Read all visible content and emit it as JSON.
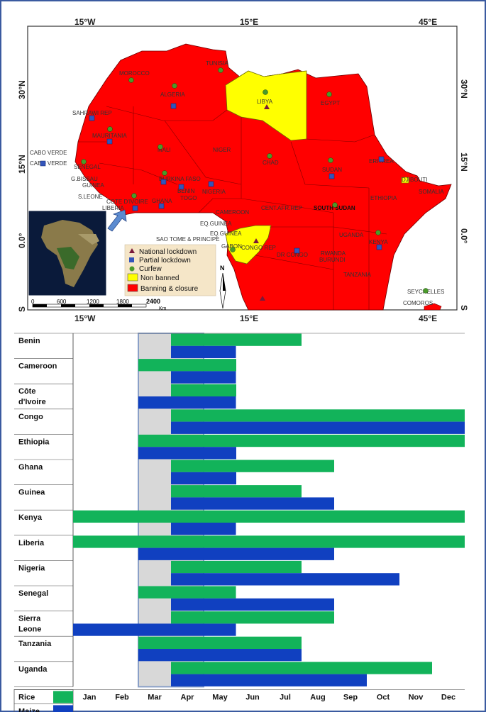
{
  "map": {
    "top_axis": [
      "15°W",
      "15°E",
      "45°E"
    ],
    "bottom_axis": [
      "15°W",
      "15°E",
      "45°E"
    ],
    "left_axis": [
      "30°N",
      "15°N",
      "0.0°",
      "S"
    ],
    "right_axis": [
      "30°N",
      "15°N",
      "0.0°",
      "S"
    ],
    "countries": [
      "MOROCCO",
      "TUNISIA",
      "ALGERIA",
      "LIBYA",
      "EGYPT",
      "SAHRAWI REP",
      "MAURITANIA",
      "MALI",
      "NIGER",
      "CHAD",
      "SUDAN",
      "ERITREA",
      "DJIBOUTI",
      "CABO VERDE",
      "CABO VERDE",
      "SENEGAL",
      "G.BISSAU",
      "GUINEA",
      "S.LEONE",
      "LIBERIA",
      "COTE D'IVOIRE",
      "BURKINA FASO",
      "GHANA",
      "BENIN",
      "TOGO",
      "NIGERIA",
      "CAMEROON",
      "CENT.AFR.REP",
      "SOUTH SUDAN",
      "ETHIOPIA",
      "SOMALIA",
      "EQ.GUINEA",
      "EQ.GUINEA",
      "GABON",
      "SAO TOME & PRINCIPE",
      "CONGO REP",
      "DR CONGO",
      "UGANDA",
      "KENYA",
      "RWANDA",
      "BURUNDI",
      "TANZANIA",
      "SEYCHELLES",
      "COMOROS"
    ],
    "legend": {
      "items": [
        "National lockdown",
        "Partial lockdown",
        "Curfew",
        "Non banned",
        "Banning & closure"
      ],
      "colors": [
        "#7a1a3a",
        "#3355bb",
        "#4a9a2a",
        "#ffff00",
        "#ff0000"
      ]
    },
    "scale": {
      "ticks": [
        "0",
        "600",
        "1200",
        "1800",
        "2400"
      ],
      "unit": "Km"
    },
    "north": "N",
    "colors": {
      "land": "#ff0000",
      "non_banned": "#ffff00",
      "sea": "#ffffff"
    }
  },
  "chart_data": {
    "type": "gantt",
    "months": [
      "Jan",
      "Feb",
      "Mar",
      "Apr",
      "May",
      "Jun",
      "Jul",
      "Aug",
      "Sep",
      "Oct",
      "Nov",
      "Dec"
    ],
    "legend": [
      {
        "name": "Rice",
        "color": "#12b35a"
      },
      {
        "name": "Maize",
        "color": "#1040c0"
      }
    ],
    "highlight_months": [
      "Mar",
      "Apr"
    ],
    "countries": [
      {
        "name": "Benin",
        "rice": [
          3,
          7
        ],
        "maize": [
          3,
          4.99
        ]
      },
      {
        "name": "Cameroon",
        "rice": [
          2,
          5
        ],
        "maize": [
          3,
          4.99
        ]
      },
      {
        "name": "Côte d'Ivoire",
        "rice": [
          3,
          5
        ],
        "maize": [
          2,
          4.99
        ]
      },
      {
        "name": "Congo",
        "rice": [
          3,
          12
        ],
        "maize": [
          3,
          12
        ]
      },
      {
        "name": "Ethiopia",
        "rice": [
          2,
          12
        ],
        "maize": [
          2,
          5
        ]
      },
      {
        "name": "Ghana",
        "rice": [
          3,
          8
        ],
        "maize": [
          3,
          5
        ]
      },
      {
        "name": "Guinea",
        "rice": [
          3,
          7
        ],
        "maize": [
          3,
          8
        ]
      },
      {
        "name": "Kenya",
        "rice": [
          0,
          12
        ],
        "maize": [
          3,
          4.99
        ]
      },
      {
        "name": "Liberia",
        "rice": [
          0,
          12
        ],
        "maize": [
          2,
          8
        ]
      },
      {
        "name": "Nigeria",
        "rice": [
          3,
          7
        ],
        "maize": [
          3,
          10
        ]
      },
      {
        "name": "Senegal",
        "rice": [
          2,
          4.99
        ],
        "maize": [
          3,
          8
        ]
      },
      {
        "name": "Sierra Leone",
        "rice": [
          3,
          8
        ],
        "maize": [
          0,
          4.99
        ]
      },
      {
        "name": "Tanzania",
        "rice": [
          2,
          7
        ],
        "maize": [
          2,
          7
        ]
      },
      {
        "name": "Uganda",
        "rice": [
          3,
          11
        ],
        "maize": [
          3,
          9
        ]
      }
    ]
  }
}
